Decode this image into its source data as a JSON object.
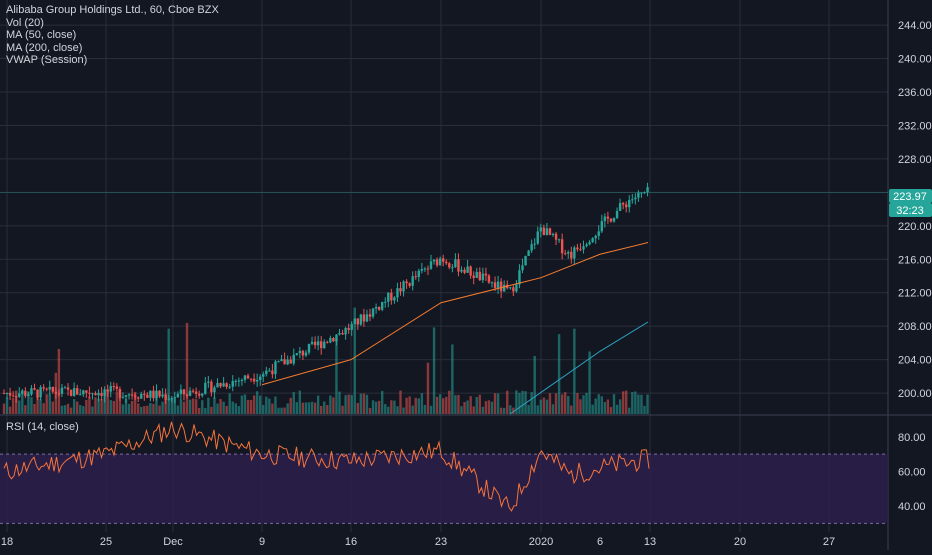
{
  "legend": {
    "title": "Alibaba Group Holdings Ltd., 60, Cboe BZX",
    "vol": "Vol (20)",
    "ma50": "MA (50, close)",
    "ma200": "MA (200, close)",
    "vwap": "VWAP (Session)"
  },
  "rsi_label": "RSI (14, close)",
  "price_badge": "223.97",
  "countdown_badge": "32:23",
  "colors": {
    "background": "#131722",
    "grid": "#2a2e39",
    "up": "#26a69a",
    "down": "#ef5350",
    "ma50": "#f57c2e",
    "ma200": "#2ca6c4",
    "rsi_line": "#f5743c",
    "rsi_band": "#2d1f4a",
    "text": "#d1d4dc"
  },
  "chart_data": [
    {
      "type": "candlestick",
      "title": "Alibaba Group Holdings Ltd., 60, Cboe BZX",
      "x_ticks": [
        "18",
        "25",
        "Dec",
        "9",
        "16",
        "23",
        "2020",
        "6",
        "13",
        "20",
        "27"
      ],
      "y_ticks": [
        200,
        204,
        208,
        212,
        216,
        220,
        224,
        228,
        232,
        236,
        240,
        244
      ],
      "ylim": [
        197.5,
        247
      ],
      "last_price": 223.97,
      "grid": true,
      "price_path": [
        [
          "18",
          200.0
        ],
        [
          "25",
          200.2
        ],
        [
          "Dec",
          199.6
        ],
        [
          "9",
          202.3
        ],
        [
          "16",
          207.9
        ],
        [
          "23",
          216.2
        ],
        [
          "30",
          212.0
        ],
        [
          "2020",
          219.8
        ],
        [
          "3",
          216.5
        ],
        [
          "6",
          219.9
        ],
        [
          "8",
          223.2
        ],
        [
          "9",
          223.97
        ]
      ],
      "ma50_path": [
        [
          "9",
          201.0
        ],
        [
          "16",
          204.0
        ],
        [
          "23",
          210.8
        ],
        [
          "2020",
          213.8
        ],
        [
          "6",
          216.6
        ],
        [
          "9",
          218.0
        ]
      ],
      "ma200_path": [
        [
          "30",
          197.5
        ],
        [
          "6",
          205.0
        ],
        [
          "9",
          208.5
        ]
      ],
      "volume_note": "Volume bars shown at bottom of price pane"
    },
    {
      "type": "line",
      "title": "RSI (14, close)",
      "y_ticks": [
        40,
        60,
        80
      ],
      "ylim": [
        25,
        92
      ],
      "band": [
        30,
        70
      ],
      "rsi_path": [
        [
          "18",
          60
        ],
        [
          "25",
          70
        ],
        [
          "Dec",
          85
        ],
        [
          "9",
          70
        ],
        [
          "16",
          66
        ],
        [
          "23",
          72
        ],
        [
          "30",
          38
        ],
        [
          "2020",
          72
        ],
        [
          "3",
          58
        ],
        [
          "6",
          62
        ],
        [
          "9",
          67
        ]
      ]
    }
  ]
}
